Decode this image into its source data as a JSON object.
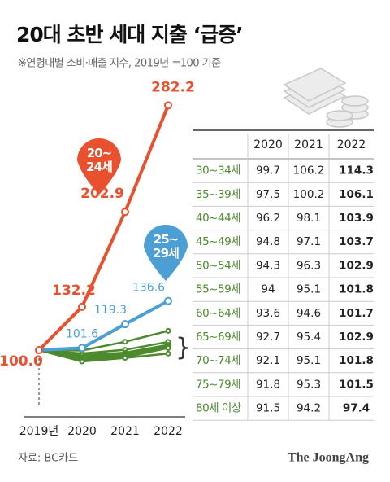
{
  "chart_data": {
    "type": "line",
    "title": "20대 초반 세대 지출 ‘급증’",
    "subtitle": "※연령대별 소비·매출 지수, 2019년 =100 기준",
    "source": "자료: BC카드",
    "logo": "The JoongAng",
    "categories": [
      "2019년",
      "2020",
      "2021",
      "2022"
    ],
    "ylim": [
      60,
      290
    ],
    "series": [
      {
        "name": "20~ 24세",
        "color": "#e8502e",
        "values": [
          100,
          132.2,
          202.9,
          282.2
        ],
        "value_labels": [
          "100.0",
          "132.2",
          "202.9",
          "282.2"
        ]
      },
      {
        "name": "25~ 29세",
        "color": "#4b9fd5",
        "values": [
          100,
          101.6,
          119.3,
          136.6
        ]
      },
      {
        "name": "30~34세",
        "color": "#4d8a2e",
        "values": [
          100,
          99.7,
          106.2,
          114.3
        ]
      },
      {
        "name": "35~39세",
        "color": "#4d8a2e",
        "values": [
          100,
          97.5,
          100.2,
          106.1
        ]
      },
      {
        "name": "40~44세",
        "color": "#4d8a2e",
        "values": [
          100,
          96.2,
          98.1,
          103.9
        ]
      },
      {
        "name": "45~49세",
        "color": "#4d8a2e",
        "values": [
          100,
          94.8,
          97.1,
          103.7
        ]
      },
      {
        "name": "50~54세",
        "color": "#4d8a2e",
        "values": [
          100,
          94.3,
          96.3,
          102.9
        ]
      },
      {
        "name": "55~59세",
        "color": "#4d8a2e",
        "values": [
          100,
          94.0,
          95.1,
          101.8
        ]
      },
      {
        "name": "60~64세",
        "color": "#4d8a2e",
        "values": [
          100,
          93.6,
          94.6,
          101.7
        ]
      },
      {
        "name": "65~69세",
        "color": "#4d8a2e",
        "values": [
          100,
          92.7,
          95.4,
          102.9
        ]
      },
      {
        "name": "70~74세",
        "color": "#4d8a2e",
        "values": [
          100,
          92.1,
          95.1,
          101.8
        ]
      },
      {
        "name": "75~79세",
        "color": "#4d8a2e",
        "values": [
          100,
          91.8,
          95.3,
          101.5
        ]
      },
      {
        "name": "80세 이상",
        "color": "#4d8a2e",
        "values": [
          100,
          91.5,
          94.2,
          97.4
        ]
      }
    ]
  }
}
